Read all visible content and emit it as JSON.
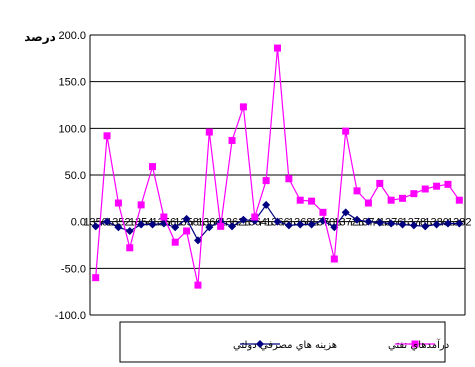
{
  "chart_data": {
    "type": "line",
    "ylabel": "درصد",
    "ylim": [
      -100,
      200
    ],
    "yticks": [
      -100,
      -50,
      0,
      50,
      100,
      150,
      200
    ],
    "ytick_labels": [
      "-100.0",
      "-50.0",
      "0.0",
      "50.0",
      "100.0",
      "150.0",
      "200.0"
    ],
    "grid": true,
    "legend_position": "bottom",
    "x": [
      "1350",
      "1351",
      "1352",
      "1353",
      "1354",
      "1355",
      "1356",
      "1357",
      "1358",
      "1359",
      "1360",
      "1361",
      "1362",
      "1363",
      "1364",
      "1365",
      "1366",
      "1367",
      "1368",
      "1369",
      "1370",
      "1371",
      "1372",
      "1373",
      "1374",
      "1375",
      "1376",
      "1377",
      "1378",
      "1379",
      "1380",
      "1381",
      "1382"
    ],
    "x_tick_labels": [
      "1350",
      "1352",
      "1354",
      "1356",
      "1358",
      "1360",
      "1362",
      "1364",
      "1366",
      "1368",
      "1370",
      "1372",
      "1374",
      "1376",
      "1378",
      "1380",
      "1382"
    ],
    "series": [
      {
        "name": "هزينه هاي مصرفي دولتي",
        "color": "#000080",
        "marker": "diamond",
        "values": [
          -5,
          0,
          -6,
          -10,
          -3,
          -3,
          -2,
          -6,
          3,
          -20,
          -6,
          0,
          -5,
          2,
          1,
          18,
          0,
          -4,
          -3,
          -3,
          1,
          -6,
          10,
          2,
          0,
          -1,
          -2,
          -3,
          -4,
          -5,
          -3,
          -2,
          -2
        ]
      },
      {
        "name": "درآمدهاي نفتي",
        "color": "#ff00ff",
        "marker": "square",
        "values": [
          -60,
          92,
          20,
          -28,
          18,
          59,
          5,
          -22,
          -10,
          -68,
          96,
          -5,
          87,
          123,
          5,
          44,
          186,
          46,
          23,
          22,
          10,
          -40,
          97,
          33,
          20,
          41,
          23,
          25,
          30,
          35,
          38,
          40,
          23
        ]
      }
    ]
  }
}
